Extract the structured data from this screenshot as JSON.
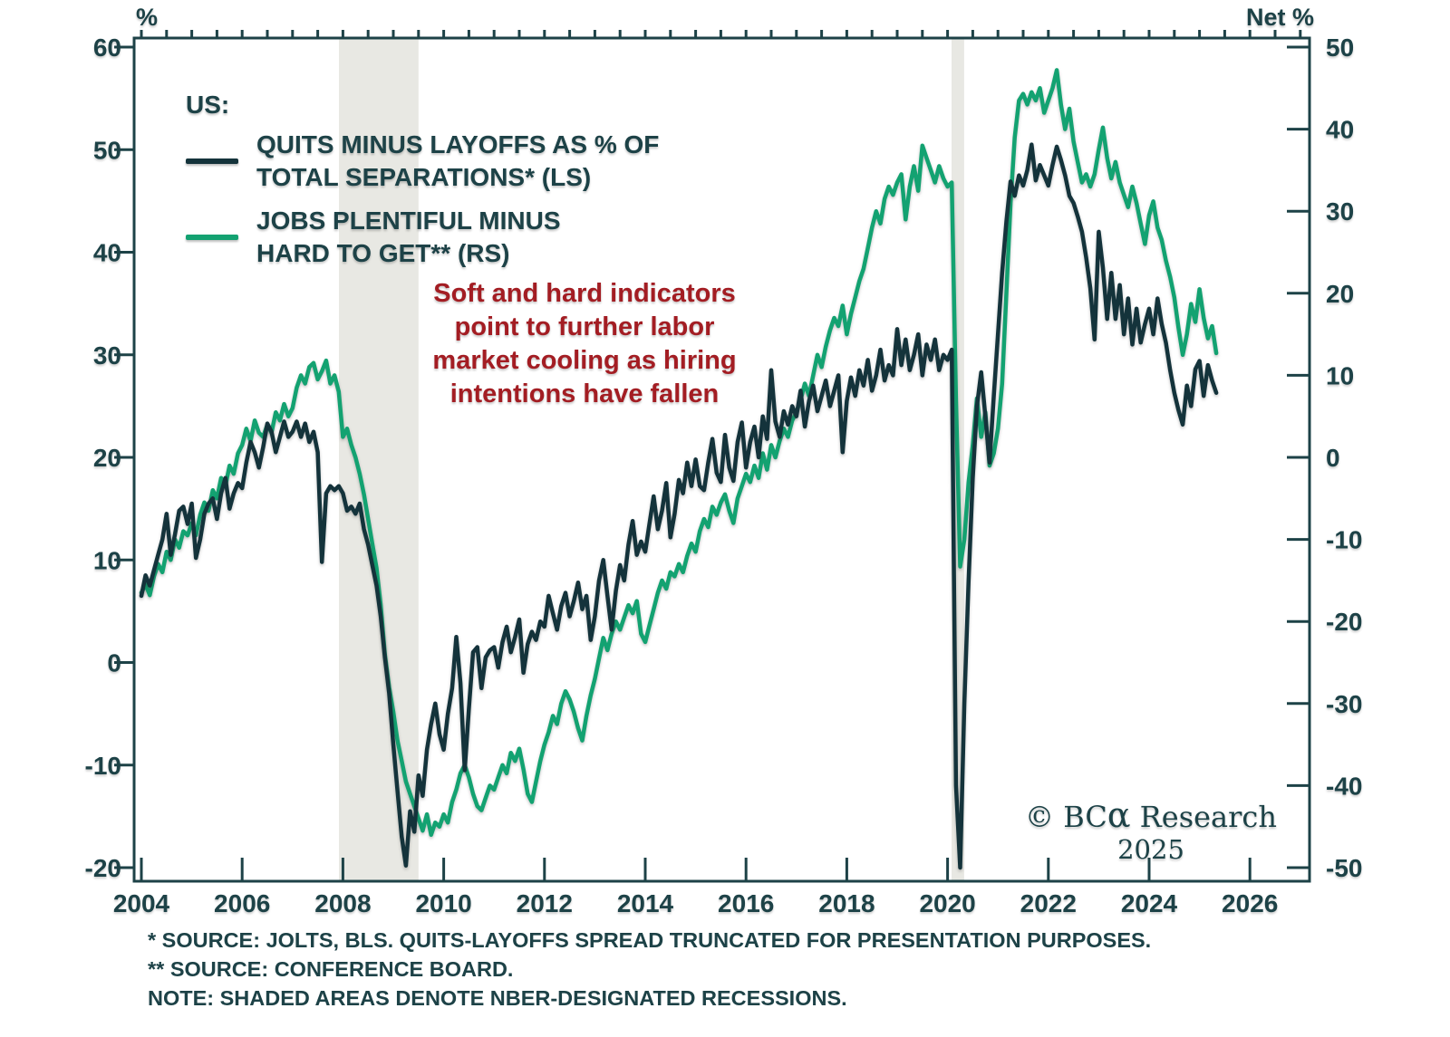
{
  "page": {
    "background": "#ffffff",
    "text_color": "#1d4247"
  },
  "header": {
    "left_axis_unit": "%",
    "right_axis_unit": "Net %"
  },
  "legend": {
    "title": "US:",
    "items": [
      {
        "id": "quits-minus-layoffs",
        "line1": "QUITS MINUS LAYOFFS AS % OF",
        "line2": "TOTAL SEPARATIONS* (LS)",
        "color": "#14333b"
      },
      {
        "id": "jobs-plentiful",
        "line1": "JOBS PLENTIFUL MINUS",
        "line2": "HARD TO GET** (RS)",
        "color": "#13a271"
      }
    ]
  },
  "annotation": {
    "color": "#a31d23",
    "lines": [
      "Soft and hard indicators",
      "point to further labor",
      "market cooling as hiring",
      "intentions have fallen"
    ]
  },
  "copyright": {
    "prefix": "© BC",
    "alpha": "α",
    "suffix": " Research",
    "year": "2025"
  },
  "footnotes": [
    "* SOURCE: JOLTS, BLS. QUITS-LAYOFFS SPREAD TRUNCATED FOR PRESENTATION PURPOSES.",
    "** SOURCE: CONFERENCE BOARD.",
    "NOTE: SHADED AREAS DENOTE NBER-DESIGNATED RECESSIONS."
  ],
  "chart_data": {
    "type": "line",
    "title": "",
    "x_start_year": 2004,
    "x_step_months": 1,
    "x_axis": {
      "ticks": [
        2004,
        2006,
        2008,
        2010,
        2012,
        2014,
        2016,
        2018,
        2020,
        2022,
        2024,
        2026
      ],
      "range": [
        2004,
        2027.2
      ]
    },
    "left_axis": {
      "label": "%",
      "min": -20,
      "max": 60,
      "ticks": [
        60,
        50,
        40,
        30,
        20,
        10,
        0,
        -10,
        -20
      ]
    },
    "right_axis": {
      "label": "Net %",
      "min": -50,
      "max": 50,
      "ticks": [
        50,
        40,
        30,
        20,
        10,
        0,
        -10,
        -20,
        -30,
        -40,
        -50
      ]
    },
    "grid": false,
    "legend_position": "top-left",
    "recession_bands": [
      [
        2007.92,
        2009.5
      ],
      [
        2020.08,
        2020.33
      ]
    ],
    "band_color": "#e8e8e3",
    "series": [
      {
        "id": "quits-minus-layoffs",
        "name": "QUITS MINUS LAYOFFS AS % OF TOTAL SEPARATIONS* (LS)",
        "axis": "left",
        "color": "#14333b",
        "note": "truncated at -20",
        "values": [
          6.5,
          8.5,
          7.5,
          9.0,
          10.5,
          12.0,
          14.5,
          10.5,
          12.5,
          14.8,
          15.2,
          13.5,
          15.5,
          10.2,
          12.0,
          14.5,
          15.5,
          16.0,
          14.0,
          16.5,
          18.0,
          15.0,
          16.5,
          17.5,
          17.0,
          19.5,
          21.5,
          20.5,
          19.0,
          21.0,
          23.3,
          22.5,
          20.5,
          22.0,
          23.5,
          22.0,
          22.5,
          23.5,
          22.0,
          23.3,
          21.5,
          22.5,
          20.5,
          9.8,
          16.5,
          17.2,
          16.8,
          17.2,
          16.5,
          14.8,
          15.2,
          14.5,
          15.5,
          13.0,
          11.5,
          9.5,
          7.5,
          4.5,
          0.5,
          -3.0,
          -8.0,
          -12.5,
          -17.0,
          -19.8,
          -14.5,
          -16.5,
          -11.0,
          -13.0,
          -8.5,
          -6.0,
          -4.0,
          -7.0,
          -8.5,
          -5.0,
          -2.5,
          2.5,
          -2.0,
          -10.5,
          -4.5,
          1.0,
          1.5,
          -2.5,
          0.5,
          1.2,
          1.5,
          -0.5,
          2.0,
          3.5,
          1.0,
          2.5,
          4.2,
          -1.0,
          1.8,
          3.0,
          2.2,
          4.0,
          3.5,
          6.5,
          4.8,
          3.2,
          5.5,
          6.8,
          4.5,
          6.0,
          7.8,
          5.2,
          6.5,
          2.2,
          4.5,
          8.0,
          10.0,
          6.5,
          3.2,
          7.0,
          9.5,
          8.0,
          11.5,
          13.8,
          10.5,
          11.8,
          10.8,
          13.5,
          16.2,
          13.0,
          14.8,
          17.5,
          12.2,
          14.5,
          17.8,
          16.5,
          19.5,
          17.2,
          19.8,
          17.2,
          16.8,
          19.5,
          21.8,
          18.5,
          17.6,
          22.2,
          19.0,
          17.7,
          21.5,
          23.4,
          19.0,
          21.5,
          23.0,
          20.0,
          24.0,
          21.8,
          28.5,
          23.5,
          22.0,
          24.5,
          23.2,
          25.0,
          24.0,
          26.5,
          23.0,
          25.5,
          27.0,
          24.5,
          26.0,
          27.5,
          25.0,
          26.5,
          28.0,
          20.5,
          25.5,
          27.8,
          26.0,
          28.5,
          27.0,
          29.5,
          26.5,
          28.0,
          30.5,
          27.5,
          29.0,
          28.0,
          32.5,
          29.0,
          31.5,
          28.5,
          30.0,
          32.0,
          28.0,
          31.0,
          29.5,
          31.5,
          28.5,
          30.0,
          29.5,
          30.5,
          -12.0,
          -20.0,
          -4.0,
          8.0,
          18.0,
          25.0,
          28.3,
          24.0,
          19.5,
          26.0,
          32.0,
          38.0,
          43.0,
          46.9,
          45.5,
          47.5,
          46.5,
          48.0,
          50.5,
          47.0,
          48.5,
          47.5,
          46.5,
          48.5,
          50.3,
          49.0,
          47.5,
          45.5,
          44.8,
          43.5,
          42.0,
          39.5,
          36.5,
          31.5,
          42.0,
          38.5,
          33.5,
          38.0,
          33.5,
          36.8,
          32.0,
          35.5,
          31.0,
          34.5,
          31.2,
          33.0,
          34.5,
          32.0,
          35.5,
          33.0,
          31.2,
          28.5,
          26.3,
          24.6,
          23.2,
          27.0,
          25.0,
          28.6,
          29.4,
          26.0,
          29.0,
          27.5,
          26.3
        ]
      },
      {
        "id": "jobs-plentiful",
        "name": "JOBS PLENTIFUL MINUS HARD TO GET** (RS)",
        "axis": "right",
        "color": "#13a271",
        "note": "",
        "values": [
          -16.5,
          -15.5,
          -16.8,
          -14.5,
          -13.0,
          -14.0,
          -11.5,
          -12.5,
          -10.0,
          -11.0,
          -9.0,
          -9.5,
          -8.0,
          -9.5,
          -7.0,
          -5.5,
          -6.5,
          -4.0,
          -5.0,
          -2.5,
          -3.5,
          -1.0,
          -2.0,
          0.5,
          1.5,
          3.5,
          2.0,
          4.5,
          3.0,
          2.5,
          4.0,
          3.0,
          5.5,
          4.5,
          6.5,
          5.0,
          6.0,
          8.5,
          10.0,
          9.0,
          11.0,
          11.5,
          9.5,
          10.5,
          11.8,
          9.0,
          10.0,
          8.0,
          2.5,
          3.5,
          1.5,
          0.0,
          -2.0,
          -4.5,
          -7.5,
          -10.5,
          -13.5,
          -18.0,
          -24.0,
          -28.0,
          -31.0,
          -34.5,
          -37.0,
          -39.5,
          -41.0,
          -42.5,
          -44.0,
          -45.5,
          -43.5,
          -46.0,
          -44.5,
          -45.0,
          -43.5,
          -44.5,
          -42.0,
          -40.5,
          -38.5,
          -37.5,
          -39.0,
          -41.0,
          -42.5,
          -43.0,
          -41.5,
          -40.0,
          -40.5,
          -39.0,
          -37.5,
          -38.5,
          -36.0,
          -37.0,
          -35.5,
          -38.0,
          -41.0,
          -42.0,
          -39.5,
          -37.0,
          -35.0,
          -33.5,
          -31.5,
          -32.5,
          -30.0,
          -28.5,
          -29.5,
          -31.0,
          -33.0,
          -34.5,
          -31.5,
          -29.0,
          -27.0,
          -24.5,
          -22.0,
          -23.5,
          -21.5,
          -20.0,
          -21.0,
          -19.5,
          -18.0,
          -19.0,
          -17.5,
          -21.5,
          -22.5,
          -20.5,
          -18.5,
          -16.5,
          -15.0,
          -16.0,
          -14.0,
          -14.5,
          -13.0,
          -14.0,
          -12.0,
          -10.5,
          -11.5,
          -9.0,
          -7.5,
          -8.5,
          -6.0,
          -7.0,
          -5.5,
          -4.5,
          -6.5,
          -8.0,
          -5.0,
          -3.5,
          -2.0,
          -3.0,
          -1.0,
          -2.5,
          0.5,
          -1.5,
          1.5,
          0.0,
          2.0,
          3.5,
          2.5,
          4.5,
          5.5,
          7.0,
          9.0,
          7.5,
          10.0,
          12.5,
          11.0,
          13.5,
          15.5,
          17.0,
          16.0,
          18.5,
          15.0,
          17.5,
          19.5,
          21.5,
          23.0,
          25.5,
          28.0,
          30.0,
          28.5,
          31.5,
          33.0,
          32.0,
          33.5,
          34.5,
          29.0,
          33.0,
          35.5,
          32.5,
          38.0,
          36.5,
          35.0,
          33.5,
          35.5,
          34.0,
          33.0,
          33.5,
          7.0,
          -13.3,
          -10.0,
          -3.0,
          1.5,
          7.2,
          2.5,
          5.5,
          -1.0,
          0.5,
          3.5,
          9.0,
          20.0,
          31.0,
          39.0,
          43.5,
          44.3,
          43.0,
          44.5,
          43.5,
          45.0,
          42.0,
          43.5,
          45.0,
          47.2,
          43.0,
          40.0,
          42.5,
          38.5,
          36.0,
          33.5,
          34.5,
          33.0,
          34.5,
          37.5,
          40.2,
          36.5,
          34.0,
          36.0,
          33.5,
          32.0,
          30.5,
          33.0,
          31.0,
          28.5,
          26.0,
          29.5,
          31.2,
          28.0,
          26.5,
          24.0,
          22.0,
          19.5,
          15.8,
          12.5,
          15.0,
          18.7,
          16.5,
          20.5,
          17.0,
          14.5,
          16.0,
          12.7
        ]
      }
    ]
  }
}
